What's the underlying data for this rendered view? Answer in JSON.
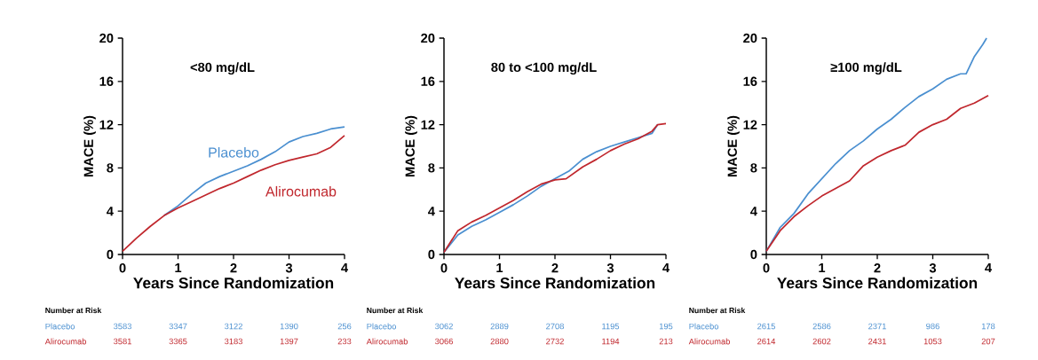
{
  "chart_data": [
    {
      "type": "line",
      "title": "<80 mg/dL",
      "xlabel": "Years Since Randomization",
      "ylabel": "MACE (%)",
      "xlim": [
        0,
        4
      ],
      "ylim": [
        0,
        20
      ],
      "xticks": [
        0,
        1,
        2,
        3,
        4
      ],
      "yticks": [
        0,
        4,
        8,
        12,
        16,
        20
      ],
      "series": [
        {
          "name": "Placebo",
          "color": "#4a8fd0",
          "x": [
            0.75,
            1.0,
            1.25,
            1.5,
            1.75,
            2.0,
            2.25,
            2.5,
            2.75,
            3.0,
            3.25,
            3.5,
            3.75,
            4.0
          ],
          "values": [
            3.6,
            4.5,
            5.6,
            6.6,
            7.2,
            7.7,
            8.2,
            8.8,
            9.5,
            10.4,
            10.9,
            11.2,
            11.6,
            11.8
          ]
        },
        {
          "name": "Alirocumab",
          "color": "#c0272d",
          "x": [
            0,
            0.25,
            0.5,
            0.75,
            1.0,
            1.25,
            1.5,
            1.75,
            2.0,
            2.25,
            2.5,
            2.75,
            3.0,
            3.25,
            3.5,
            3.75,
            4.0
          ],
          "values": [
            0.3,
            1.5,
            2.6,
            3.6,
            4.3,
            4.9,
            5.5,
            6.1,
            6.6,
            7.2,
            7.8,
            8.3,
            8.7,
            9.0,
            9.3,
            9.9,
            11.0
          ]
        }
      ],
      "annotations": [
        "Number at Risk",
        "Placebo",
        "3583",
        "3347",
        "3122",
        "1390",
        "256",
        "Alirocumab",
        "3581",
        "3365",
        "3183",
        "1397",
        "233"
      ]
    },
    {
      "type": "line",
      "title": "80 to <100 mg/dL",
      "xlabel": "Years Since Randomization",
      "ylabel": "MACE (%)",
      "xlim": [
        0,
        4
      ],
      "ylim": [
        0,
        20
      ],
      "xticks": [
        0,
        1,
        2,
        3,
        4
      ],
      "yticks": [
        0,
        4,
        8,
        12,
        16,
        20
      ],
      "series": [
        {
          "color": "#4a8fd0",
          "x": [
            0,
            0.25,
            0.5,
            0.75,
            1.0,
            1.25,
            1.5,
            1.75,
            2.0,
            2.25,
            2.5,
            2.75,
            3.0,
            3.25,
            3.5,
            3.75,
            3.85
          ],
          "values": [
            0.2,
            1.8,
            2.6,
            3.2,
            3.9,
            4.6,
            5.4,
            6.3,
            7.0,
            7.7,
            8.8,
            9.5,
            10.0,
            10.4,
            10.8,
            11.2,
            12.0
          ]
        },
        {
          "color": "#c0272d",
          "x": [
            0,
            0.25,
            0.5,
            0.75,
            1.0,
            1.25,
            1.5,
            1.75,
            2.0,
            2.2,
            2.5,
            2.75,
            3.0,
            3.25,
            3.5,
            3.75,
            3.85,
            4.0
          ],
          "values": [
            0.2,
            2.2,
            3.0,
            3.6,
            4.3,
            5.0,
            5.8,
            6.5,
            6.9,
            7.0,
            8.1,
            8.8,
            9.6,
            10.2,
            10.7,
            11.4,
            12.0,
            12.1
          ]
        }
      ],
      "annotations": [
        "Number at Risk",
        "Placebo",
        "3062",
        "2889",
        "2708",
        "1195",
        "195",
        "Alirocumab",
        "3066",
        "2880",
        "2732",
        "1194",
        "213"
      ]
    },
    {
      "type": "line",
      "title": "≥100 mg/dL",
      "xlabel": "Years Since Randomization",
      "ylabel": "MACE (%)",
      "xlim": [
        0,
        4
      ],
      "ylim": [
        0,
        20
      ],
      "xticks": [
        0,
        1,
        2,
        3,
        4
      ],
      "yticks": [
        0,
        4,
        8,
        12,
        16,
        20
      ],
      "series": [
        {
          "color": "#4a8fd0",
          "x": [
            0,
            0.25,
            0.5,
            0.75,
            1.0,
            1.25,
            1.5,
            1.75,
            2.0,
            2.25,
            2.5,
            2.75,
            3.0,
            3.25,
            3.5,
            3.6,
            3.75,
            3.9,
            3.97
          ],
          "values": [
            0.3,
            2.5,
            3.8,
            5.6,
            7.0,
            8.4,
            9.6,
            10.5,
            11.6,
            12.5,
            13.6,
            14.6,
            15.3,
            16.2,
            16.7,
            16.7,
            18.3,
            19.4,
            20.0
          ]
        },
        {
          "color": "#c0272d",
          "x": [
            0,
            0.25,
            0.5,
            0.75,
            1.0,
            1.25,
            1.5,
            1.75,
            2.0,
            2.25,
            2.5,
            2.75,
            3.0,
            3.25,
            3.5,
            3.75,
            4.0
          ],
          "values": [
            0.3,
            2.2,
            3.5,
            4.5,
            5.4,
            6.1,
            6.8,
            8.2,
            9.0,
            9.6,
            10.1,
            11.3,
            12.0,
            12.5,
            13.5,
            14.0,
            14.7
          ]
        }
      ],
      "annotations": [
        "Number at Risk",
        "Placebo",
        "2615",
        "2586",
        "2371",
        "986",
        "178",
        "Alirocumab",
        "2614",
        "2602",
        "2431",
        "1053",
        "207"
      ]
    }
  ]
}
